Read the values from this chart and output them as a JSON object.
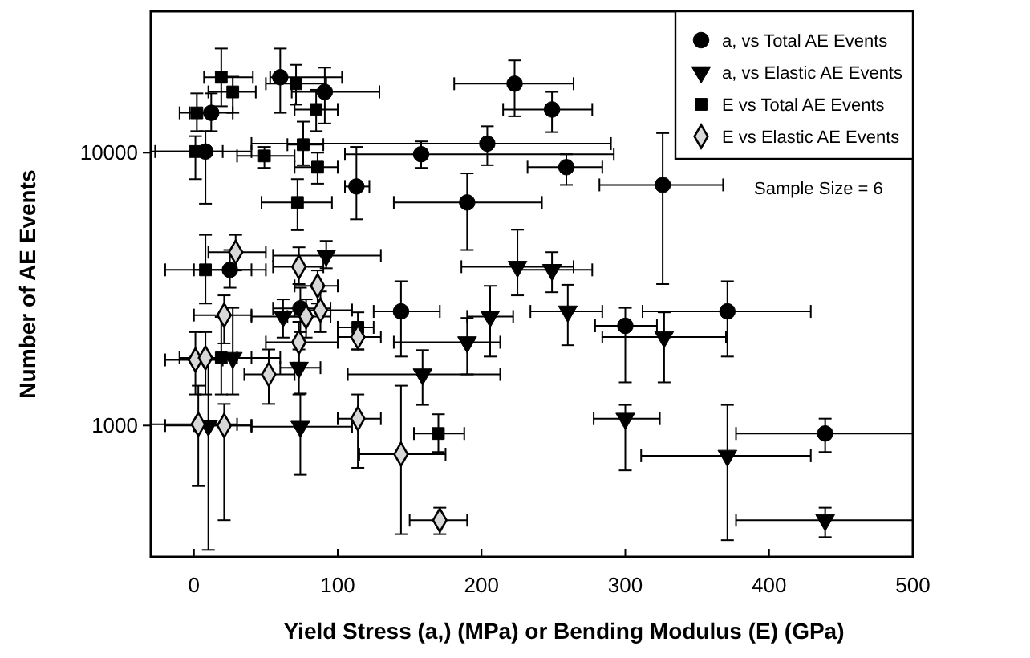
{
  "chart_data": {
    "type": "scatter",
    "xlabel": "Yield Stress (a,)  (MPa) or Bending Modulus (E) (GPa)",
    "ylabel": "Number of AE Events",
    "log": "y",
    "xlim": [
      -30,
      500
    ],
    "xticks": [
      0,
      100,
      200,
      300,
      400,
      500
    ],
    "ylim": [
      330,
      33000
    ],
    "yticks": [
      1000,
      10000
    ],
    "grid": false,
    "legend": "top right",
    "annotations": [
      "Sample Size = 6"
    ],
    "series": [
      {
        "name": "a, vs Total AE Events",
        "color": "#000000",
        "marker": "circle",
        "x": [
          60,
          91,
          12,
          8,
          158,
          204,
          113,
          190,
          223,
          249,
          259,
          326,
          25,
          74,
          144,
          371,
          300,
          439
        ],
        "values": [
          18900,
          16700,
          14000,
          10100,
          9870,
          10800,
          7520,
          6570,
          17900,
          14400,
          8850,
          7620,
          3720,
          2690,
          2620,
          2620,
          2320,
          935
        ],
        "errors": [
          [
            14000,
            24100
          ],
          [
            12800,
            20500
          ],
          [
            12000,
            16500
          ],
          [
            6500,
            12000
          ],
          [
            8800,
            11000
          ],
          [
            9000,
            12500
          ],
          [
            5700,
            10500
          ],
          [
            4400,
            8400
          ],
          [
            13600,
            21800
          ],
          [
            11900,
            16700
          ],
          [
            7620,
            9870
          ],
          [
            3300,
            11800
          ],
          [
            3200,
            4400
          ],
          [
            2200,
            3200
          ],
          [
            1790,
            3380
          ],
          [
            1790,
            3380
          ],
          [
            1440,
            2700
          ],
          [
            800,
            1060
          ]
        ],
        "xerrors": [
          [
            53,
            103
          ],
          [
            68,
            129
          ],
          [
            -3,
            27
          ],
          [
            -27,
            40
          ],
          [
            105,
            292
          ],
          [
            40,
            290
          ],
          [
            105,
            122
          ],
          [
            139,
            242
          ],
          [
            181,
            264
          ],
          [
            215,
            277
          ],
          [
            232,
            284
          ],
          [
            282,
            368
          ],
          [
            0,
            50
          ],
          [
            55,
            95
          ],
          [
            125,
            171
          ],
          [
            312,
            429
          ],
          [
            279,
            322
          ],
          [
            377,
            500
          ]
        ]
      },
      {
        "name": "a, vs Elastic AE Events",
        "color": "#000000",
        "marker": "triangle",
        "x": [
          92,
          225,
          249,
          260,
          62,
          206,
          190,
          327,
          159,
          27,
          74,
          10,
          300,
          371,
          439,
          73
        ],
        "values": [
          4200,
          3820,
          3720,
          2620,
          2510,
          2510,
          2020,
          2110,
          1540,
          1770,
          990,
          1000,
          1060,
          775,
          450,
          1630
        ],
        "errors": [
          [
            3770,
            4750
          ],
          [
            3000,
            5220
          ],
          [
            3080,
            4320
          ],
          [
            1970,
            3280
          ],
          [
            2100,
            2900
          ],
          [
            1790,
            3250
          ],
          [
            1540,
            2480
          ],
          [
            1440,
            2600
          ],
          [
            1190,
            1890
          ],
          [
            1300,
            2700
          ],
          [
            660,
            1310
          ],
          [
            350,
            1750
          ],
          [
            685,
            1190
          ],
          [
            380,
            1190
          ],
          [
            390,
            500
          ],
          [
            1300,
            1900
          ]
        ],
        "xerrors": [
          [
            55,
            130
          ],
          [
            186,
            264
          ],
          [
            225,
            277
          ],
          [
            234,
            284
          ],
          [
            40,
            80
          ],
          [
            190,
            222
          ],
          [
            139,
            213
          ],
          [
            284,
            370
          ],
          [
            107,
            213
          ],
          [
            -10,
            60
          ],
          [
            40,
            110
          ],
          [
            -20,
            40
          ],
          [
            278,
            324
          ],
          [
            311,
            429
          ],
          [
            377,
            500
          ],
          [
            60,
            88
          ]
        ]
      },
      {
        "name": "E vs Total AE Events",
        "color": "#000000",
        "marker": "square",
        "x": [
          19,
          27,
          71,
          2,
          85,
          1,
          49,
          76,
          86,
          72,
          8,
          114,
          170,
          19
        ],
        "values": [
          18900,
          16700,
          17900,
          14000,
          14400,
          10100,
          9730,
          10700,
          8850,
          6570,
          3720,
          2290,
          935,
          1770
        ],
        "errors": [
          [
            14800,
            24100
          ],
          [
            14000,
            19000
          ],
          [
            15000,
            21000
          ],
          [
            12000,
            16500
          ],
          [
            12000,
            17000
          ],
          [
            8000,
            11500
          ],
          [
            8800,
            10500
          ],
          [
            9000,
            13000
          ],
          [
            7700,
            10000
          ],
          [
            5200,
            8000
          ],
          [
            2800,
            5000
          ],
          [
            1900,
            2600
          ],
          [
            800,
            1100
          ],
          [
            1300,
            2500
          ]
        ],
        "xerrors": [
          [
            7,
            41
          ],
          [
            10,
            43
          ],
          [
            50,
            92
          ],
          [
            -10,
            15
          ],
          [
            70,
            100
          ],
          [
            -30,
            20
          ],
          [
            30,
            70
          ],
          [
            65,
            90
          ],
          [
            70,
            100
          ],
          [
            47,
            96
          ],
          [
            -20,
            40
          ],
          [
            100,
            125
          ],
          [
            153,
            188
          ],
          [
            0,
            40
          ]
        ]
      },
      {
        "name": "E vs Elastic AE Events",
        "color": "#000000",
        "marker": "diamond",
        "x": [
          29,
          73,
          86,
          21,
          88,
          78,
          114,
          73,
          1,
          8,
          52,
          3,
          21,
          114,
          144,
          171
        ],
        "values": [
          4320,
          3820,
          3250,
          2540,
          2650,
          2510,
          2110,
          2020,
          1740,
          1770,
          1540,
          1010,
          1000,
          1060,
          785,
          450
        ],
        "errors": [
          [
            3700,
            5000
          ],
          [
            3300,
            4500
          ],
          [
            2800,
            3700
          ],
          [
            2000,
            3000
          ],
          [
            2200,
            3100
          ],
          [
            2100,
            2900
          ],
          [
            1900,
            2300
          ],
          [
            1700,
            2400
          ],
          [
            1300,
            2200
          ],
          [
            1300,
            2200
          ],
          [
            1200,
            1900
          ],
          [
            600,
            1400
          ],
          [
            450,
            1200
          ],
          [
            700,
            1300
          ],
          [
            400,
            1400
          ],
          [
            400,
            500
          ]
        ],
        "xerrors": [
          [
            10,
            50
          ],
          [
            55,
            90
          ],
          [
            70,
            100
          ],
          [
            0,
            40
          ],
          [
            70,
            110
          ],
          [
            65,
            95
          ],
          [
            100,
            130
          ],
          [
            50,
            100
          ],
          [
            -20,
            20
          ],
          [
            -10,
            30
          ],
          [
            35,
            70
          ],
          [
            -30,
            30
          ],
          [
            0,
            40
          ],
          [
            100,
            130
          ],
          [
            115,
            175
          ],
          [
            150,
            190
          ]
        ]
      }
    ]
  }
}
